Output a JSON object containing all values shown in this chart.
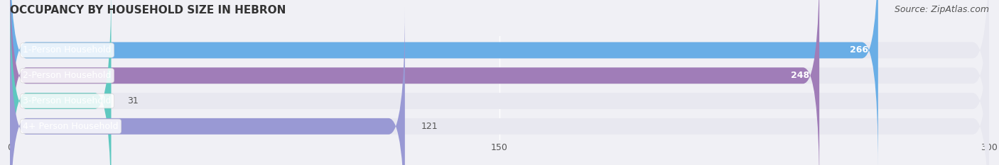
{
  "title": "OCCUPANCY BY HOUSEHOLD SIZE IN HEBRON",
  "source": "Source: ZipAtlas.com",
  "categories": [
    "1-Person Household",
    "2-Person Household",
    "3-Person Household",
    "4+ Person Household"
  ],
  "values": [
    266,
    248,
    31,
    121
  ],
  "bar_colors": [
    "#6aaee6",
    "#a07db8",
    "#5ec8c0",
    "#9999d4"
  ],
  "label_colors": [
    "white",
    "white",
    "black",
    "black"
  ],
  "xlim": [
    0,
    300
  ],
  "xticks": [
    0,
    150,
    300
  ],
  "background_color": "#f0f0f5",
  "bar_background_color": "#e8e8f0",
  "title_fontsize": 11,
  "source_fontsize": 9,
  "label_fontsize": 9,
  "value_fontsize": 9,
  "tick_fontsize": 9
}
